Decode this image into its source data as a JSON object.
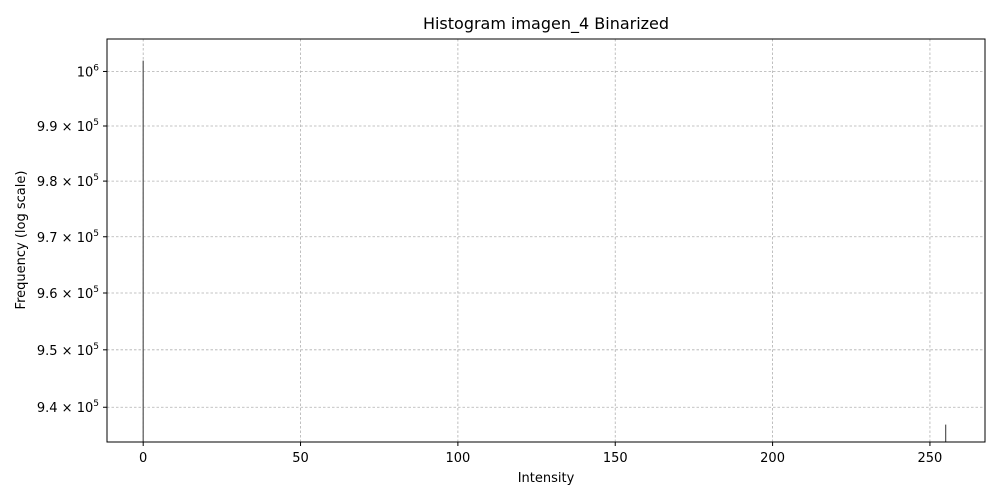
{
  "chart_data": {
    "type": "bar",
    "title": "Histogram imagen_4 Binarized",
    "xlabel": "Intensity",
    "ylabel": "Frequency (log scale)",
    "y_scale": "log",
    "grid": true,
    "x": [
      0,
      255
    ],
    "values": [
      1002000,
      937000
    ],
    "xlim": [
      -11.5,
      267.5
    ],
    "ylim": [
      934000,
      1006000
    ],
    "xticks": [
      0,
      50,
      100,
      150,
      200,
      250
    ],
    "yticks": [
      {
        "value": 940000,
        "mantissa": "9.4",
        "base": "10",
        "exponent": "5"
      },
      {
        "value": 950000,
        "mantissa": "9.5",
        "base": "10",
        "exponent": "5"
      },
      {
        "value": 960000,
        "mantissa": "9.6",
        "base": "10",
        "exponent": "5"
      },
      {
        "value": 970000,
        "mantissa": "9.7",
        "base": "10",
        "exponent": "5"
      },
      {
        "value": 980000,
        "mantissa": "9.8",
        "base": "10",
        "exponent": "5"
      },
      {
        "value": 990000,
        "mantissa": "9.9",
        "base": "10",
        "exponent": "5"
      },
      {
        "value": 1000000,
        "mantissa": "",
        "base": "10",
        "exponent": "6"
      }
    ],
    "colors": {
      "bar": "#555555",
      "grid": "#b0b0b0",
      "axis": "#000000"
    }
  }
}
